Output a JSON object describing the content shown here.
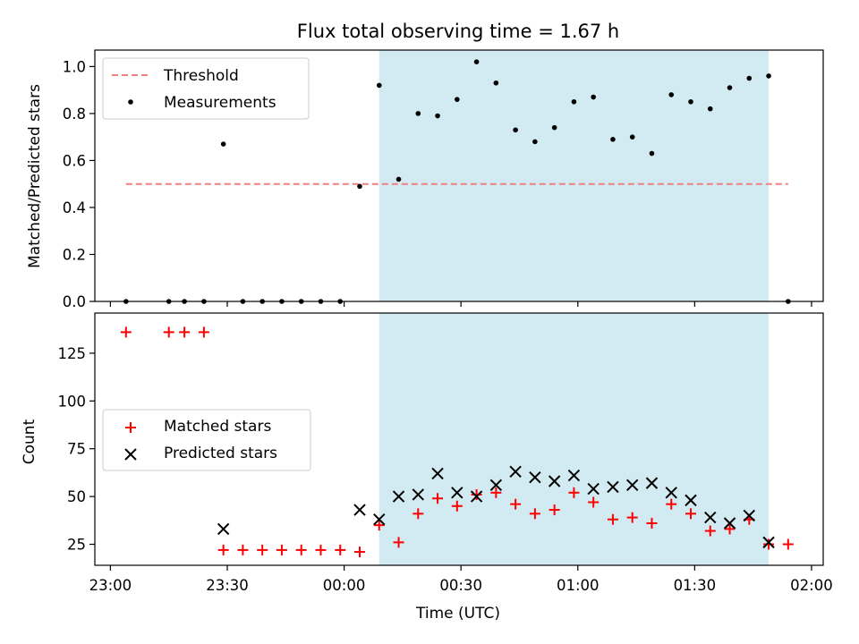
{
  "chart_data": {
    "type": "scatter",
    "title": "Flux total observing time = 1.67 h",
    "xlabel": "Time (UTC)",
    "x_tick_labels": [
      "23:00",
      "23:30",
      "00:00",
      "00:30",
      "01:00",
      "01:30",
      "02:00"
    ],
    "x_tick_minutes": [
      0,
      30,
      60,
      90,
      120,
      150,
      180
    ],
    "xlim_minutes": [
      -4,
      183
    ],
    "shaded_region_minutes": [
      69,
      169
    ],
    "shade_color": "#add8e6",
    "top": {
      "ylabel": "Matched/Predicted stars",
      "ylim": [
        0,
        1.07
      ],
      "yticks": [
        0.0,
        0.2,
        0.4,
        0.6,
        0.8,
        1.0
      ],
      "ytick_labels": [
        "0.0",
        "0.2",
        "0.4",
        "0.6",
        "0.8",
        "1.0"
      ],
      "legend": "upper left",
      "threshold": {
        "name": "Threshold",
        "value": 0.5,
        "x_range_minutes": [
          4,
          174
        ],
        "color": "#f08080"
      },
      "measurements": {
        "name": "Measurements",
        "color": "#000000",
        "x_minutes": [
          4,
          15,
          19,
          24,
          29,
          34,
          39,
          44,
          49,
          54,
          59,
          64,
          69,
          74,
          79,
          84,
          89,
          94,
          99,
          104,
          109,
          114,
          119,
          124,
          129,
          134,
          139,
          144,
          149,
          154,
          159,
          164,
          169,
          174
        ],
        "y": [
          0,
          0,
          0,
          0,
          0.67,
          0,
          0,
          0,
          0,
          0,
          0,
          0.49,
          0.92,
          0.52,
          0.8,
          0.79,
          0.86,
          1.02,
          0.93,
          0.73,
          0.68,
          0.74,
          0.85,
          0.87,
          0.69,
          0.7,
          0.63,
          0.88,
          0.85,
          0.82,
          0.91,
          0.95,
          0.96,
          0
        ]
      }
    },
    "bottom": {
      "ylabel": "Count",
      "ylim": [
        14,
        146
      ],
      "yticks": [
        25,
        50,
        75,
        100,
        125
      ],
      "ytick_labels": [
        "25",
        "50",
        "75",
        "100",
        "125"
      ],
      "legend": "center left",
      "series": [
        {
          "name": "Matched stars",
          "marker": "plus",
          "color": "#ff0000",
          "x_minutes": [
            4,
            15,
            19,
            24,
            29,
            34,
            39,
            44,
            49,
            54,
            59,
            64,
            69,
            74,
            79,
            84,
            89,
            94,
            99,
            104,
            109,
            114,
            119,
            124,
            129,
            134,
            139,
            144,
            149,
            154,
            159,
            164,
            169,
            174
          ],
          "y": [
            136,
            136,
            136,
            136,
            22,
            22,
            22,
            22,
            22,
            22,
            22,
            21,
            35,
            26,
            41,
            49,
            45,
            51,
            52,
            46,
            41,
            43,
            52,
            47,
            38,
            39,
            36,
            46,
            41,
            32,
            33,
            38,
            25,
            25
          ]
        },
        {
          "name": "Predicted stars",
          "marker": "x",
          "color": "#000000",
          "x_minutes": [
            29,
            64,
            69,
            74,
            79,
            84,
            89,
            94,
            99,
            104,
            109,
            114,
            119,
            124,
            129,
            134,
            139,
            144,
            149,
            154,
            159,
            164,
            169
          ],
          "y": [
            33,
            43,
            38,
            50,
            51,
            62,
            52,
            50,
            56,
            63,
            60,
            58,
            61,
            54,
            55,
            56,
            57,
            52,
            48,
            39,
            36,
            40,
            26
          ]
        }
      ]
    }
  }
}
